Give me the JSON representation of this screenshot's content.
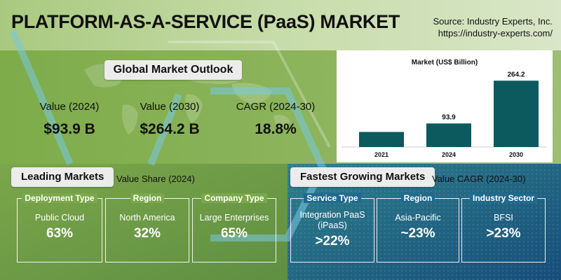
{
  "title": "PLATFORM-AS-A-SERVICE (PaaS) MARKET",
  "source": {
    "line1": "Source: Industry Experts, Inc.",
    "line2": "https://industry-experts.com/"
  },
  "colors": {
    "green": "#7aa84a",
    "blue": "#1f6a90",
    "bar": "#0d5a5e",
    "pill": "#ececec"
  },
  "outlook": {
    "heading": "Global Market Outlook",
    "metrics": [
      {
        "label": "Value (2024)",
        "value": "$93.9 B"
      },
      {
        "label": "Value (2030)",
        "value": "$264.2 B"
      },
      {
        "label": "CAGR (2024-30)",
        "value": "18.8%"
      }
    ]
  },
  "chart_data": {
    "type": "bar",
    "title": "Market (US$ Billion)",
    "categories": [
      "2021",
      "2024",
      "2030"
    ],
    "values": [
      null,
      93.9,
      264.2
    ],
    "value_labels": [
      "",
      "93.9",
      "264.2"
    ],
    "estimated_values": [
      60,
      93.9,
      264.2
    ],
    "ylim": [
      0,
      290
    ],
    "grid": false,
    "color": "#0d5a5e"
  },
  "leading": {
    "heading": "Leading Markets",
    "note": "Value Share (2024)",
    "cards": [
      {
        "type": "Deployment Type",
        "segment": "Public Cloud",
        "value": "63%"
      },
      {
        "type": "Region",
        "segment": "North America",
        "value": "32%"
      },
      {
        "type": "Company Type",
        "segment": "Large Enterprises",
        "value": "65%"
      }
    ]
  },
  "fastest": {
    "heading": "Fastest Growing Markets",
    "note": "Value CAGR (2024-30)",
    "cards": [
      {
        "type": "Service Type",
        "segment": "Integration PaaS (iPaaS)",
        "value": ">22%"
      },
      {
        "type": "Region",
        "segment": "Asia-Pacific",
        "value": "~23%"
      },
      {
        "type": "Industry Sector",
        "segment": "BFSI",
        "value": ">23%"
      }
    ]
  }
}
